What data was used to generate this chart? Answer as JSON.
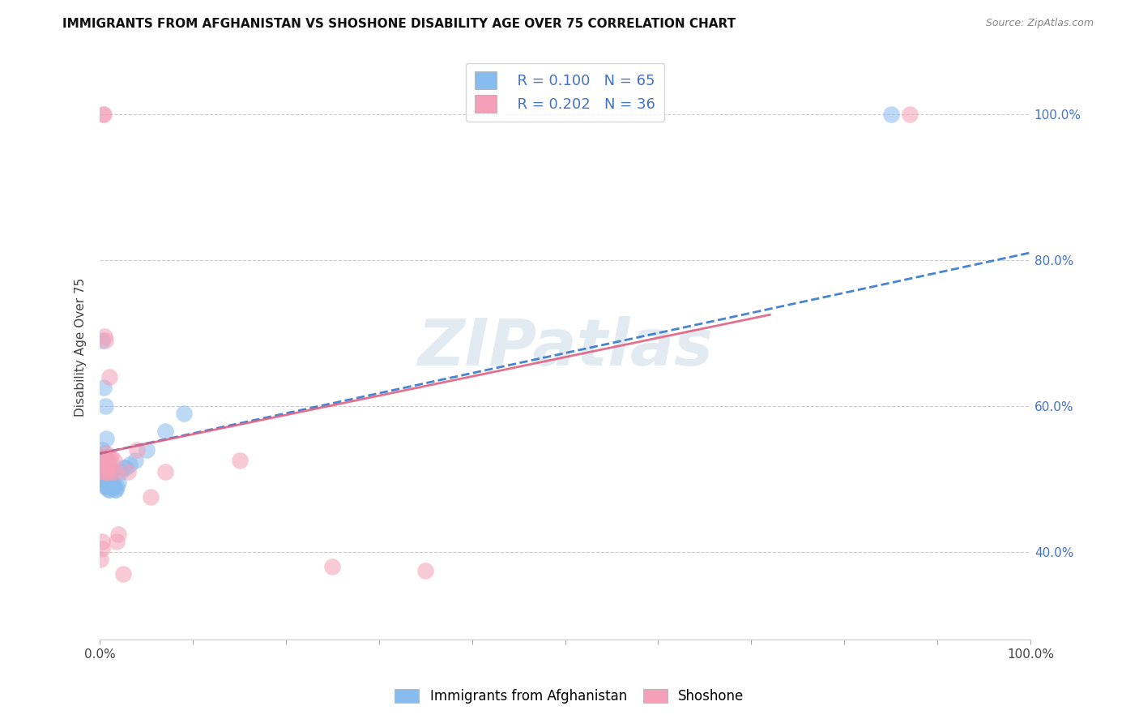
{
  "title": "IMMIGRANTS FROM AFGHANISTAN VS SHOSHONE DISABILITY AGE OVER 75 CORRELATION CHART",
  "source": "Source: ZipAtlas.com",
  "ylabel": "Disability Age Over 75",
  "ytick_labels": [
    "40.0%",
    "60.0%",
    "80.0%",
    "100.0%"
  ],
  "ytick_positions": [
    0.4,
    0.6,
    0.8,
    1.0
  ],
  "watermark": "ZIPatlas",
  "background_color": "#ffffff",
  "blue_color": "#88bbee",
  "pink_color": "#f4a0b8",
  "trend_blue_color": "#3377cc",
  "trend_pink_color": "#e06080",
  "grid_color": "#cccccc",
  "xmin": 0.0,
  "xmax": 1.0,
  "ymin": 0.28,
  "ymax": 1.08,
  "blue_trend": [
    0.0,
    0.535,
    1.0,
    0.81
  ],
  "pink_trend": [
    0.0,
    0.535,
    0.72,
    0.725
  ],
  "blue_points_x": [
    0.001,
    0.001,
    0.001,
    0.002,
    0.002,
    0.002,
    0.002,
    0.003,
    0.003,
    0.003,
    0.003,
    0.003,
    0.004,
    0.004,
    0.004,
    0.004,
    0.005,
    0.005,
    0.005,
    0.005,
    0.005,
    0.006,
    0.006,
    0.006,
    0.006,
    0.007,
    0.007,
    0.007,
    0.007,
    0.008,
    0.008,
    0.008,
    0.008,
    0.009,
    0.009,
    0.009,
    0.009,
    0.01,
    0.01,
    0.01,
    0.01,
    0.011,
    0.011,
    0.012,
    0.012,
    0.013,
    0.014,
    0.015,
    0.016,
    0.017,
    0.018,
    0.02,
    0.022,
    0.025,
    0.028,
    0.032,
    0.038,
    0.05,
    0.07,
    0.09,
    0.002,
    0.004,
    0.006,
    0.007,
    0.85
  ],
  "blue_points_y": [
    0.53,
    0.52,
    0.51,
    0.54,
    0.53,
    0.52,
    0.51,
    0.53,
    0.525,
    0.515,
    0.505,
    0.5,
    0.535,
    0.525,
    0.515,
    0.505,
    0.53,
    0.52,
    0.51,
    0.5,
    0.49,
    0.525,
    0.515,
    0.505,
    0.495,
    0.52,
    0.51,
    0.5,
    0.49,
    0.52,
    0.51,
    0.5,
    0.49,
    0.515,
    0.505,
    0.495,
    0.485,
    0.515,
    0.505,
    0.495,
    0.485,
    0.505,
    0.495,
    0.505,
    0.495,
    0.495,
    0.49,
    0.49,
    0.485,
    0.485,
    0.49,
    0.495,
    0.51,
    0.515,
    0.515,
    0.52,
    0.525,
    0.54,
    0.565,
    0.59,
    0.69,
    0.625,
    0.6,
    0.555,
    1.0
  ],
  "pink_points_x": [
    0.001,
    0.002,
    0.002,
    0.003,
    0.003,
    0.004,
    0.005,
    0.005,
    0.006,
    0.007,
    0.008,
    0.008,
    0.009,
    0.01,
    0.01,
    0.011,
    0.012,
    0.013,
    0.015,
    0.017,
    0.018,
    0.02,
    0.025,
    0.03,
    0.04,
    0.055,
    0.07,
    0.15,
    0.25,
    0.35,
    0.006,
    0.007,
    0.008,
    0.003,
    0.004,
    0.87
  ],
  "pink_points_y": [
    0.39,
    0.405,
    0.415,
    0.52,
    0.53,
    0.51,
    0.525,
    0.695,
    0.51,
    0.535,
    0.51,
    0.525,
    0.52,
    0.53,
    0.64,
    0.515,
    0.53,
    0.51,
    0.525,
    0.51,
    0.415,
    0.425,
    0.37,
    0.51,
    0.54,
    0.475,
    0.51,
    0.525,
    0.38,
    0.375,
    0.69,
    0.525,
    0.51,
    1.0,
    1.0,
    1.0
  ]
}
